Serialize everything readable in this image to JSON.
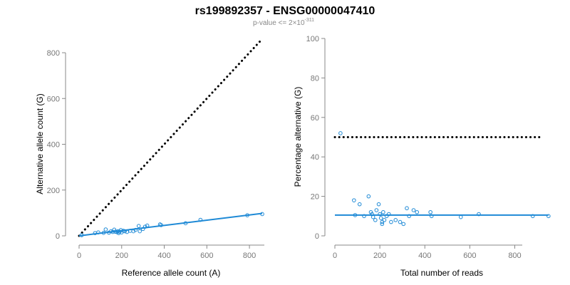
{
  "header": {
    "title": "rs199892357 - ENSG00000047410",
    "subtitle_prefix": "p-value <= 2",
    "subtitle_times": "×",
    "subtitle_base": "10",
    "subtitle_exp": "-311"
  },
  "colors": {
    "points": "#1f8ad6",
    "fit": "#1f8ad6",
    "reference": "#000000"
  },
  "chart_data": [
    {
      "type": "scatter",
      "title": "",
      "xlabel": "Reference allele count (A)",
      "ylabel": "Alternative allele count (G)",
      "xlim": [
        0,
        870
      ],
      "ylim": [
        0,
        800
      ],
      "xticks": [
        0,
        200,
        400,
        600,
        800
      ],
      "yticks": [
        0,
        200,
        400,
        600,
        800
      ],
      "grid": false,
      "points": [
        [
          12,
          3
        ],
        [
          75,
          12
        ],
        [
          90,
          15
        ],
        [
          115,
          13
        ],
        [
          125,
          28
        ],
        [
          140,
          14
        ],
        [
          150,
          20
        ],
        [
          158,
          17
        ],
        [
          165,
          27
        ],
        [
          170,
          18
        ],
        [
          178,
          16
        ],
        [
          182,
          20
        ],
        [
          186,
          12
        ],
        [
          190,
          18
        ],
        [
          196,
          25
        ],
        [
          200,
          15
        ],
        [
          208,
          22
        ],
        [
          215,
          20
        ],
        [
          225,
          17
        ],
        [
          240,
          22
        ],
        [
          255,
          20
        ],
        [
          265,
          26
        ],
        [
          280,
          43
        ],
        [
          285,
          20
        ],
        [
          300,
          30
        ],
        [
          310,
          40
        ],
        [
          320,
          45
        ],
        [
          380,
          50
        ],
        [
          385,
          47
        ],
        [
          500,
          55
        ],
        [
          570,
          70
        ],
        [
          790,
          90
        ],
        [
          860,
          95
        ]
      ],
      "lines": [
        {
          "role": "expected-ratio",
          "style": "dotted",
          "x": [
            0,
            855
          ],
          "y": [
            0,
            855
          ]
        },
        {
          "role": "fit",
          "style": "solid",
          "x": [
            0,
            860
          ],
          "y": [
            0,
            98
          ]
        }
      ]
    },
    {
      "type": "scatter",
      "title": "",
      "xlabel": "Total number of reads",
      "ylabel": "Percentage alternative (G)",
      "xlim": [
        0,
        960
      ],
      "ylim": [
        0,
        100
      ],
      "xticks": [
        0,
        200,
        400,
        600,
        800
      ],
      "yticks": [
        0,
        20,
        40,
        60,
        80,
        100
      ],
      "grid": false,
      "points": [
        [
          25,
          52
        ],
        [
          85,
          18
        ],
        [
          90,
          10.5
        ],
        [
          110,
          16
        ],
        [
          130,
          10
        ],
        [
          150,
          20
        ],
        [
          160,
          12
        ],
        [
          165,
          11
        ],
        [
          170,
          9.5
        ],
        [
          180,
          8
        ],
        [
          185,
          13
        ],
        [
          195,
          16
        ],
        [
          200,
          11
        ],
        [
          205,
          9
        ],
        [
          210,
          7
        ],
        [
          210,
          6
        ],
        [
          215,
          12
        ],
        [
          220,
          8
        ],
        [
          230,
          10
        ],
        [
          240,
          11
        ],
        [
          250,
          7
        ],
        [
          270,
          8
        ],
        [
          290,
          7
        ],
        [
          305,
          6
        ],
        [
          320,
          14
        ],
        [
          330,
          10
        ],
        [
          350,
          13
        ],
        [
          365,
          12
        ],
        [
          425,
          12
        ],
        [
          430,
          10
        ],
        [
          560,
          9.5
        ],
        [
          640,
          11
        ],
        [
          880,
          10
        ],
        [
          950,
          10
        ]
      ],
      "lines": [
        {
          "role": "expected-ratio",
          "style": "dotted",
          "x": [
            0,
            910
          ],
          "y": [
            50,
            50
          ]
        },
        {
          "role": "fit",
          "style": "solid",
          "x": [
            0,
            950
          ],
          "y": [
            10.5,
            10.5
          ]
        }
      ]
    }
  ]
}
